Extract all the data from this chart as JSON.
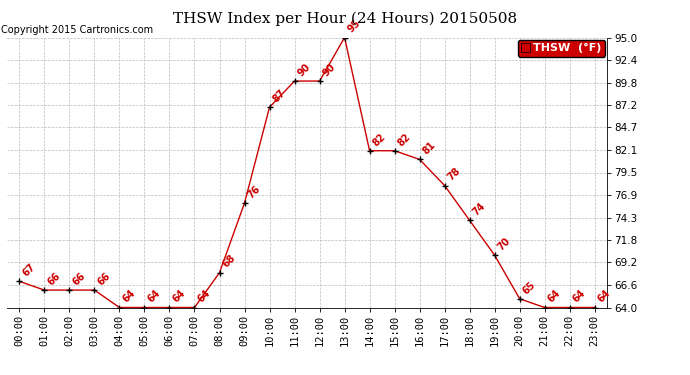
{
  "title": "THSW Index per Hour (24 Hours) 20150508",
  "copyright": "Copyright 2015 Cartronics.com",
  "hours": [
    0,
    1,
    2,
    3,
    4,
    5,
    6,
    7,
    8,
    9,
    10,
    11,
    12,
    13,
    14,
    15,
    16,
    17,
    18,
    19,
    20,
    21,
    22,
    23
  ],
  "values": [
    67,
    66,
    66,
    66,
    64,
    64,
    64,
    64,
    68,
    76,
    87,
    90,
    90,
    95,
    82,
    82,
    81,
    78,
    74,
    70,
    65,
    64,
    64,
    64
  ],
  "yticks": [
    64.0,
    66.6,
    69.2,
    71.8,
    74.3,
    76.9,
    79.5,
    82.1,
    84.7,
    87.2,
    89.8,
    92.4,
    95.0
  ],
  "line_color": "#cc0000",
  "marker_color": "#000000",
  "label_color": "#cc0000",
  "legend_bg": "#cc0000",
  "legend_text": "THSW  (°F)",
  "background_color": "#ffffff",
  "grid_color": "#bbbbbb",
  "title_fontsize": 11,
  "axis_fontsize": 7.5,
  "label_fontsize": 7,
  "copyright_fontsize": 7
}
